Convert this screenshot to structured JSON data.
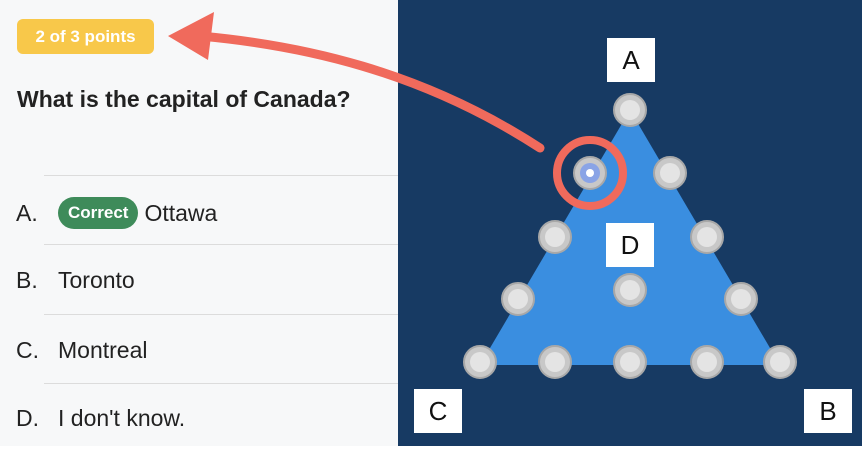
{
  "quiz": {
    "points_badge": "2 of 3 points",
    "question": "What is the capital of Canada?",
    "correct_badge": "Correct",
    "options": [
      {
        "letter": "A.",
        "text": "Ottawa"
      },
      {
        "letter": "B.",
        "text": "Toronto"
      },
      {
        "letter": "C.",
        "text": "Montreal"
      },
      {
        "letter": "D.",
        "text": "I don't know."
      }
    ]
  },
  "triangle": {
    "labels": {
      "a": "A",
      "b": "B",
      "c": "C",
      "d": "D"
    }
  },
  "colors": {
    "panel_bg": "#173a63",
    "triangle_fill": "#3a8ee0",
    "badge": "#f8c84a",
    "correct": "#3e8b5a",
    "annotation": "#f06a5c"
  }
}
